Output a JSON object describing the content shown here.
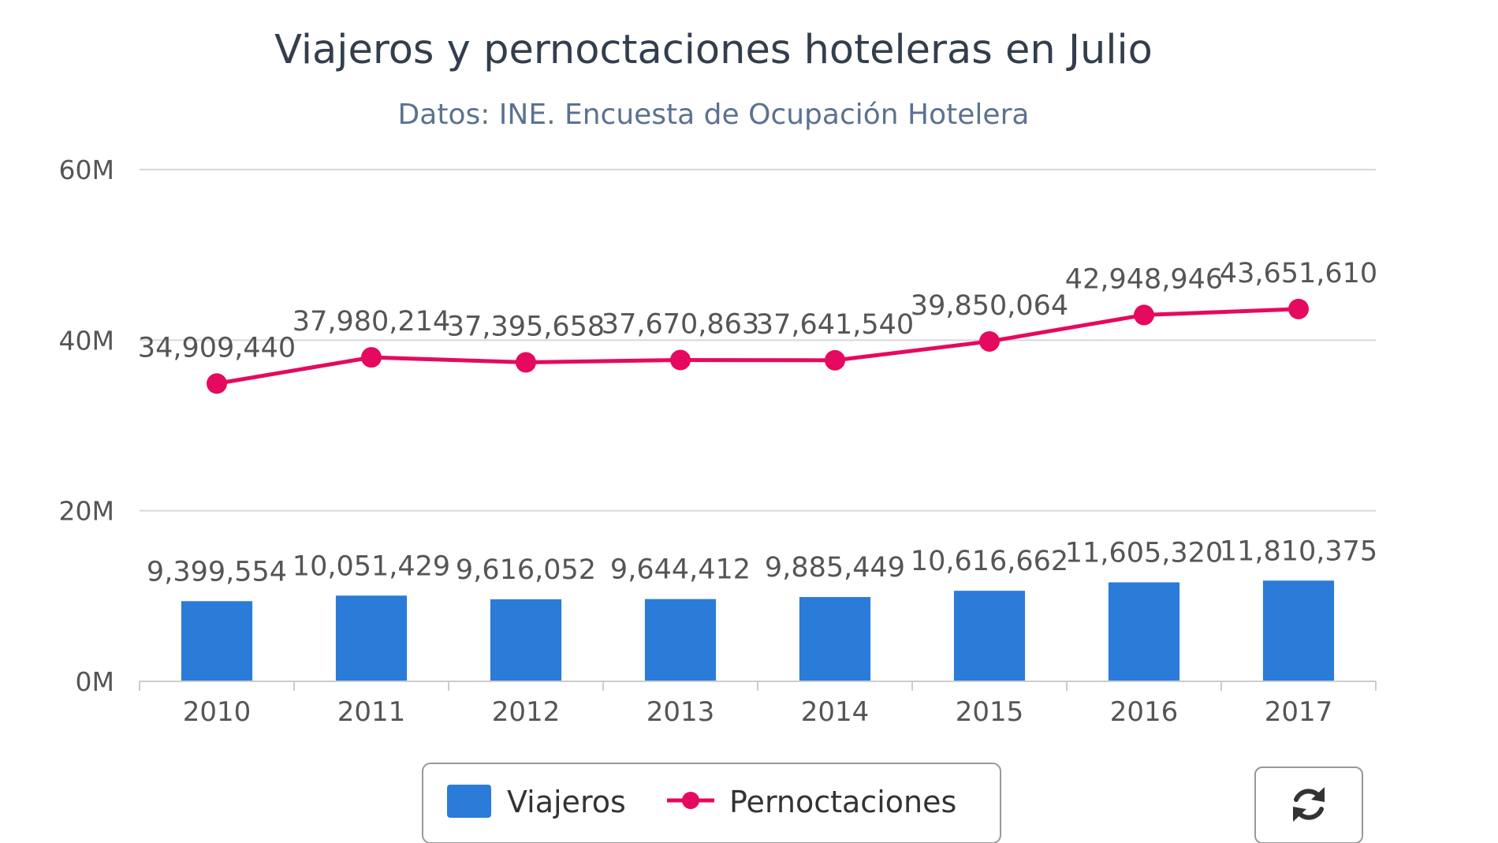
{
  "chart_data": {
    "type": "bar+line",
    "title": "Viajeros y pernoctaciones hoteleras en Julio",
    "subtitle": "Datos: INE. Encuesta de Ocupación Hotelera",
    "categories": [
      "2010",
      "2011",
      "2012",
      "2013",
      "2014",
      "2015",
      "2016",
      "2017"
    ],
    "yticks": [
      "0M",
      "20M",
      "40M",
      "60M"
    ],
    "ylim": [
      0,
      60000000
    ],
    "grid": true,
    "legend_position": "bottom-center",
    "series": [
      {
        "name": "Viajeros",
        "type": "bar",
        "color": "#2b7bd9",
        "values": [
          9399554,
          10051429,
          9616052,
          9644412,
          9885449,
          10616662,
          11605320,
          11810375
        ],
        "labels": [
          "9,399,554",
          "10,051,429",
          "9,616,052",
          "9,644,412",
          "9,885,449",
          "10,616,662",
          "11,605,320",
          "11,810,375"
        ]
      },
      {
        "name": "Pernoctaciones",
        "type": "line",
        "color": "#e5095f",
        "values": [
          34909440,
          37980214,
          37395658,
          37670863,
          37641540,
          39850064,
          42948946,
          43651610
        ],
        "labels": [
          "34,909,440",
          "37,980,214",
          "37,395,658",
          "37,670,863",
          "37,641,540",
          "39,850,064",
          "42,948,946",
          "43,651,610"
        ]
      }
    ]
  },
  "icons": {
    "reset": "refresh-icon"
  }
}
